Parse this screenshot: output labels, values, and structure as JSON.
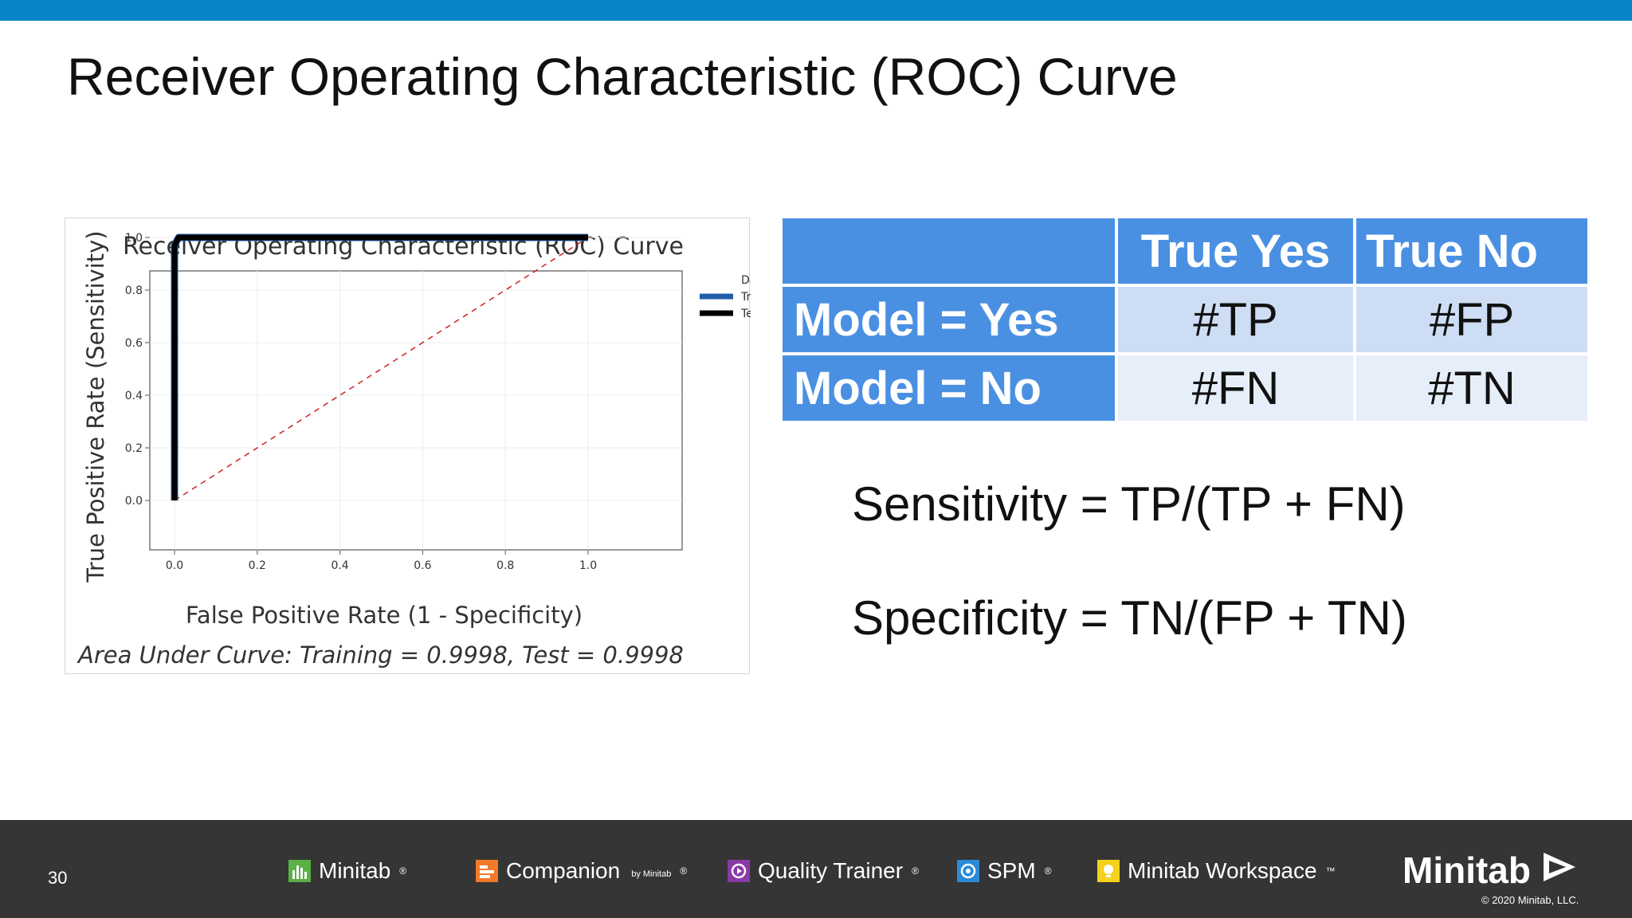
{
  "slide": {
    "title": "Receiver Operating Characteristic (ROC) Curve",
    "accent_color": "#0a84c8"
  },
  "chart_data": {
    "type": "line",
    "title": "Receiver Operating Characteristic (ROC) Curve",
    "xlabel": "False Positive Rate (1 - Specificity)",
    "ylabel": "True Positive Rate (Sensitivity)",
    "xlim": [
      0,
      1
    ],
    "ylim": [
      0,
      1
    ],
    "xticks": [
      "0.0",
      "0.2",
      "0.4",
      "0.6",
      "0.8",
      "1.0"
    ],
    "yticks": [
      "0.0",
      "0.2",
      "0.4",
      "0.6",
      "0.8",
      "1.0"
    ],
    "grid": true,
    "legend": {
      "title": "Data Set",
      "placement": "top-right"
    },
    "series": [
      {
        "name": "Training",
        "color": "#1f5fa8",
        "x": [
          0,
          0,
          0.01,
          1
        ],
        "y": [
          0,
          0.97,
          1,
          1
        ]
      },
      {
        "name": "Test",
        "color": "#000000",
        "x": [
          0,
          0,
          0.01,
          1
        ],
        "y": [
          0,
          0.97,
          1,
          1
        ]
      },
      {
        "color": "#cc2222",
        "style": "dashed",
        "x": [
          0,
          1
        ],
        "y": [
          0,
          1
        ]
      }
    ],
    "footnote": "Area Under Curve: Training = 0.9998, Test = 0.9998"
  },
  "confusion_matrix": {
    "header_color": "#4a90e2",
    "columns": [
      "True Yes",
      "True No"
    ],
    "rows": [
      {
        "label": "Model = Yes",
        "cells": [
          "#TP",
          "#FP"
        ]
      },
      {
        "label": "Model = No",
        "cells": [
          "#FN",
          "#TN"
        ]
      }
    ]
  },
  "formulas": {
    "sensitivity": "Sensitivity = TP/(TP + FN)",
    "specificity": "Specificity = TN/(FP + TN)"
  },
  "footer": {
    "page_number": "30",
    "products": [
      {
        "name": "Minitab",
        "icon": "minitab-bars-icon",
        "color": "#5bb046"
      },
      {
        "name": "Companion",
        "suffix": "by Minitab",
        "icon": "companion-icon",
        "color": "#f07a2a"
      },
      {
        "name": "Quality Trainer",
        "icon": "quality-trainer-icon",
        "color": "#8a3aa8"
      },
      {
        "name": "SPM",
        "icon": "spm-icon",
        "color": "#2a8ad8"
      },
      {
        "name": "Minitab Workspace",
        "icon": "workspace-icon",
        "color": "#f2d21a"
      }
    ],
    "brand": "Minitab",
    "copyright": "© 2020 Minitab, LLC."
  }
}
